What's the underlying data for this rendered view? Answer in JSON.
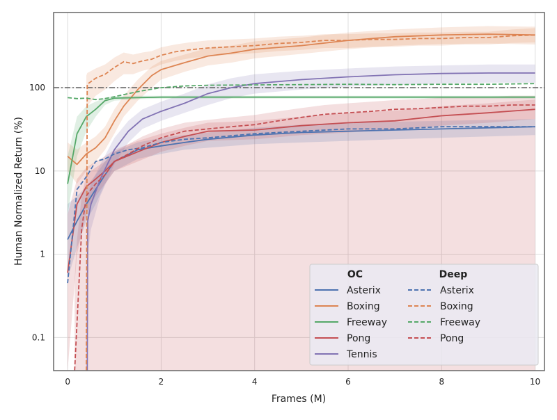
{
  "chart_data": {
    "type": "line",
    "title": "",
    "xlabel": "Frames (M)",
    "ylabel": "Human Normalized Return (%)",
    "xlim": [
      -0.3,
      10.2
    ],
    "ylim": [
      0.04,
      800
    ],
    "yscale": "log",
    "x_ticks": [
      0,
      2,
      4,
      6,
      8,
      10
    ],
    "y_ticks": [
      {
        "value": 0.1,
        "label": "0.1"
      },
      {
        "value": 1,
        "label": "1"
      },
      {
        "value": 10,
        "label": "10"
      },
      {
        "value": 100,
        "label": "100"
      }
    ],
    "grid": true,
    "reference_line": {
      "y": 100,
      "style": "dash-dot"
    },
    "legend": {
      "position": "lower-right",
      "groups": [
        {
          "title": "OC",
          "entries": [
            "Asterix",
            "Boxing",
            "Freeway",
            "Pong",
            "Tennis"
          ]
        },
        {
          "title": "Deep",
          "entries": [
            "Asterix",
            "Boxing",
            "Freeway",
            "Pong"
          ]
        }
      ]
    },
    "colors": {
      "Asterix": "#4c72b0",
      "Boxing": "#dd8452",
      "Freeway": "#55a868",
      "Pong": "#c44e52",
      "Tennis": "#8172b3"
    },
    "series": [
      {
        "name": "Asterix",
        "group": "OC",
        "style": "solid",
        "x": [
          0,
          0.2,
          0.4,
          0.6,
          0.8,
          1,
          1.5,
          2,
          2.5,
          3,
          4,
          5,
          6,
          7,
          8,
          9,
          10
        ],
        "y": [
          1.5,
          2.5,
          4,
          6,
          9,
          13,
          18,
          20,
          22,
          24,
          27,
          29,
          30,
          31,
          32,
          33,
          34
        ],
        "lower": [
          0.5,
          1.2,
          2.5,
          4,
          7,
          10,
          14,
          16,
          18,
          19,
          21,
          22,
          23,
          24,
          25,
          26,
          27
        ],
        "upper": [
          4,
          5,
          6.5,
          9,
          13,
          17,
          22,
          25,
          27,
          29,
          33,
          36,
          38,
          39,
          40,
          41,
          42
        ]
      },
      {
        "name": "Boxing",
        "group": "OC",
        "style": "solid",
        "x": [
          0,
          0.2,
          0.4,
          0.6,
          0.8,
          1,
          1.2,
          1.5,
          1.8,
          2,
          2.5,
          3,
          3.5,
          4,
          5,
          6,
          7,
          8,
          9,
          10
        ],
        "y": [
          15,
          12,
          16,
          19,
          25,
          40,
          60,
          95,
          140,
          165,
          200,
          240,
          260,
          290,
          320,
          370,
          410,
          430,
          440,
          430
        ],
        "lower": [
          10,
          7,
          10,
          13,
          18,
          28,
          45,
          70,
          100,
          125,
          155,
          185,
          200,
          225,
          255,
          290,
          320,
          335,
          340,
          330
        ],
        "upper": [
          22,
          18,
          22,
          26,
          34,
          55,
          80,
          125,
          180,
          210,
          250,
          300,
          320,
          360,
          400,
          460,
          500,
          530,
          550,
          540
        ]
      },
      {
        "name": "Freeway",
        "group": "OC",
        "style": "solid",
        "x": [
          0,
          0.2,
          0.4,
          0.6,
          0.8,
          1,
          1.5,
          2,
          4,
          6,
          8,
          10
        ],
        "y": [
          7,
          28,
          45,
          55,
          70,
          75,
          76,
          77,
          77,
          77,
          77,
          77
        ],
        "lower": [
          3,
          15,
          30,
          45,
          62,
          70,
          73,
          74,
          74,
          74,
          74,
          74
        ],
        "upper": [
          15,
          45,
          60,
          68,
          76,
          79,
          80,
          80,
          80,
          80,
          80,
          80
        ]
      },
      {
        "name": "Pong",
        "group": "OC",
        "style": "solid",
        "x": [
          0,
          0.2,
          0.4,
          0.6,
          0.8,
          1,
          1.5,
          2,
          2.5,
          3,
          4,
          5,
          6,
          7,
          8,
          9,
          10
        ],
        "y": [
          0.6,
          4,
          6.5,
          8,
          10,
          13,
          17,
          22,
          26,
          30,
          31,
          35,
          38,
          40,
          46,
          50,
          55
        ],
        "lower": [
          0.04,
          1,
          3,
          5,
          7,
          10,
          13,
          17,
          20,
          23,
          24,
          27,
          29,
          31,
          35,
          38,
          42
        ],
        "upper": [
          3,
          8,
          11,
          13,
          15,
          18,
          23,
          28,
          33,
          38,
          40,
          45,
          50,
          53,
          60,
          65,
          72
        ]
      },
      {
        "name": "Tennis",
        "group": "OC",
        "style": "solid",
        "x": [
          0.42,
          0.43,
          0.5,
          0.7,
          1,
          1.3,
          1.6,
          2,
          2.5,
          3,
          3.5,
          4,
          5,
          6,
          7,
          8,
          9,
          10
        ],
        "y": [
          0.04,
          2.5,
          4,
          8,
          18,
          30,
          42,
          52,
          65,
          85,
          100,
          112,
          125,
          135,
          143,
          148,
          150,
          150
        ],
        "lower": [
          0.04,
          1,
          2,
          5,
          12,
          22,
          32,
          40,
          50,
          62,
          75,
          85,
          95,
          103,
          108,
          112,
          115,
          115
        ],
        "upper": [
          0.5,
          5,
          7,
          12,
          25,
          40,
          55,
          68,
          85,
          110,
          130,
          145,
          160,
          170,
          180,
          185,
          190,
          190
        ]
      },
      {
        "name": "Asterix",
        "group": "Deep",
        "style": "dashed",
        "x": [
          0,
          0.2,
          0.4,
          0.6,
          0.8,
          1,
          1.3,
          1.6,
          2,
          2.5,
          3,
          4,
          5,
          6,
          7,
          8,
          9,
          10
        ],
        "y": [
          0.45,
          6,
          8.5,
          13,
          14,
          16,
          18,
          19,
          22,
          24,
          25,
          28,
          30,
          32,
          32,
          34,
          34,
          34
        ]
      },
      {
        "name": "Boxing",
        "group": "Deep",
        "style": "dashed",
        "x": [
          0.4,
          0.42,
          0.6,
          0.8,
          1,
          1.2,
          1.4,
          1.6,
          1.8,
          2,
          2.3,
          2.6,
          3,
          3.5,
          4,
          4.5,
          5,
          5.5,
          6,
          6.5,
          7,
          7.5,
          8,
          8.5,
          9,
          9.5,
          10
        ],
        "y": [
          0.04,
          110,
          130,
          145,
          175,
          205,
          195,
          210,
          220,
          245,
          270,
          285,
          300,
          310,
          320,
          340,
          350,
          370,
          370,
          380,
          380,
          390,
          390,
          400,
          400,
          420,
          430
        ],
        "lower": [
          0.04,
          60,
          80,
          95,
          120,
          145,
          145,
          160,
          170,
          190,
          210,
          225,
          240,
          250,
          260,
          275,
          285,
          300,
          300,
          310,
          310,
          320,
          320,
          330,
          330,
          345,
          350
        ],
        "upper": [
          140,
          150,
          170,
          190,
          230,
          265,
          250,
          265,
          275,
          305,
          330,
          350,
          370,
          380,
          390,
          410,
          420,
          440,
          440,
          450,
          450,
          460,
          460,
          470,
          470,
          500,
          520
        ]
      },
      {
        "name": "Freeway",
        "group": "Deep",
        "style": "dashed",
        "x": [
          0,
          0.2,
          0.4,
          0.6,
          0.8,
          1,
          1.3,
          1.6,
          2,
          2.5,
          3,
          4,
          5,
          6,
          7,
          8,
          9,
          10
        ],
        "y": [
          76,
          74,
          75,
          72,
          74,
          78,
          85,
          92,
          100,
          105,
          107,
          108,
          109,
          110,
          109,
          110,
          110,
          112
        ]
      },
      {
        "name": "Pong",
        "group": "Deep",
        "style": "dashed",
        "x": [
          0.15,
          0.2,
          0.3,
          0.4,
          0.5,
          0.6,
          0.8,
          1,
          1.3,
          1.6,
          2,
          2.5,
          3,
          3.5,
          4,
          4.5,
          5,
          5.5,
          6,
          6.5,
          7,
          7.5,
          8,
          8.5,
          9,
          9.5,
          10
        ],
        "y": [
          0.04,
          0.15,
          2,
          5,
          6,
          7,
          9,
          13,
          16,
          20,
          25,
          30,
          32,
          34,
          36,
          40,
          44,
          48,
          50,
          52,
          55,
          56,
          58,
          60,
          60,
          62,
          62
        ],
        "lower": [
          0.04,
          0.04,
          0.04,
          0.04,
          0.04,
          0.04,
          0.04,
          0.04,
          0.04,
          0.04,
          0.04,
          0.04,
          0.04,
          0.04,
          0.04,
          0.04,
          0.04,
          0.04,
          0.04,
          0.04,
          0.04,
          0.04,
          0.04,
          0.04,
          0.04,
          0.04,
          0.04
        ],
        "upper": [
          0.5,
          1.5,
          5,
          9,
          10,
          11,
          13,
          17,
          21,
          26,
          32,
          38,
          41,
          44,
          47,
          52,
          57,
          62,
          65,
          68,
          71,
          73,
          76,
          78,
          78,
          80,
          80
        ]
      }
    ]
  }
}
